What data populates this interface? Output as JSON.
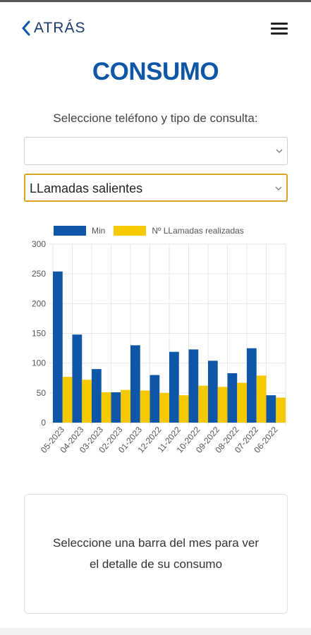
{
  "header": {
    "back_label": "ATRÁS"
  },
  "page": {
    "title": "CONSUMO",
    "subtitle": "Seleccione teléfono y tipo de consulta:"
  },
  "selects": {
    "phone_value": "",
    "type_value": "LLamadas salientes"
  },
  "colors": {
    "min": "#0d56a8",
    "calls": "#f6c800",
    "accent_border": "#d9a520"
  },
  "chart_data": {
    "type": "bar",
    "categories": [
      "05-2023",
      "04-2023",
      "03-2023",
      "02-2023",
      "01-2023",
      "12-2022",
      "11-2022",
      "10-2022",
      "09-2022",
      "08-2022",
      "07-2022",
      "06-2022"
    ],
    "series": [
      {
        "name": "Min",
        "values": [
          254,
          148,
          90,
          51,
          130,
          80,
          119,
          123,
          104,
          83,
          125,
          46
        ]
      },
      {
        "name": "Nº LLamadas realizadas",
        "values": [
          77,
          72,
          51,
          55,
          54,
          50,
          46,
          62,
          60,
          67,
          79,
          42
        ]
      }
    ],
    "ylim": [
      0,
      300
    ],
    "yticks": [
      0,
      50,
      100,
      150,
      200,
      250,
      300
    ],
    "grid": true,
    "legend": "top-left"
  },
  "detail": {
    "line1": "Seleccione una barra del mes para ver",
    "line2": "el detalle de su consumo"
  }
}
